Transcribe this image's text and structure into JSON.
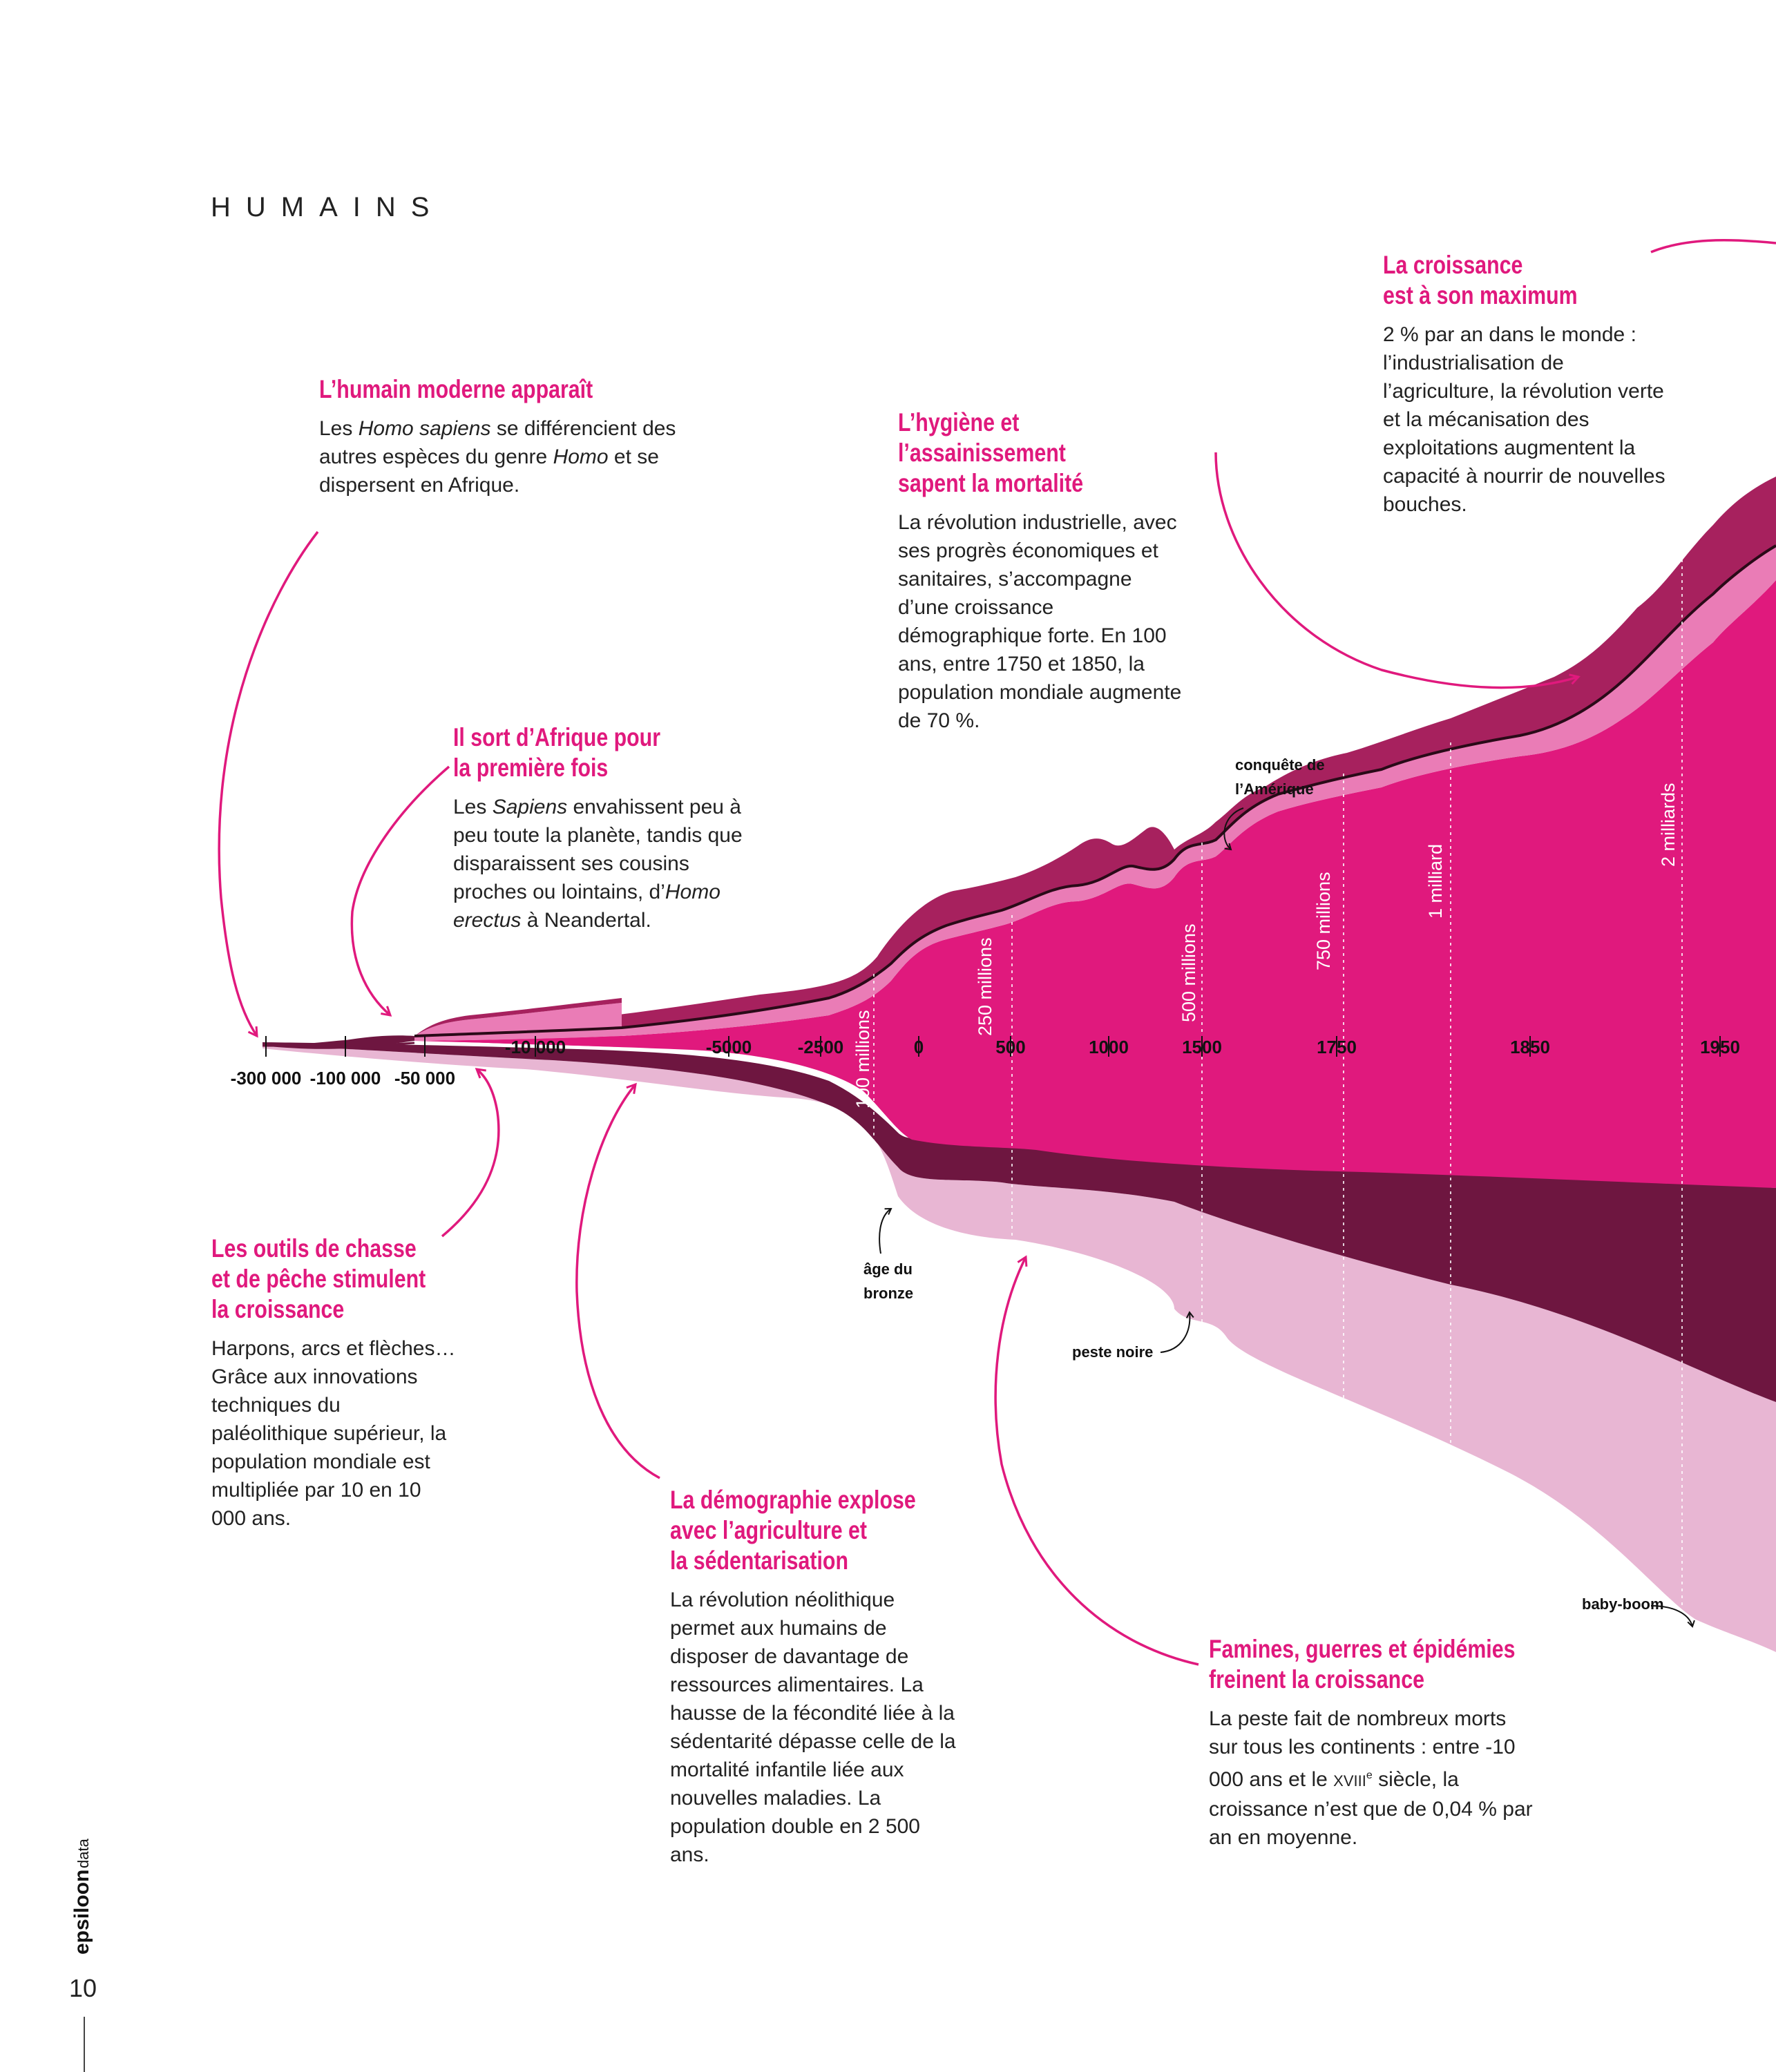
{
  "section_title": "HUMAINS",
  "annotations": {
    "humain_moderne": {
      "title": "L’humain moderne apparaît",
      "body": [
        "Les ",
        "Homo sapiens",
        " se différencient des autres espèces du genre ",
        "Homo",
        " et se dispersent en Afrique."
      ]
    },
    "sort_afrique": {
      "title": [
        "Il sort d’Afrique pour",
        "la première fois"
      ],
      "body": [
        "Les ",
        "Sapiens",
        " envahissent peu à peu toute la planète, tandis que disparaissent ses cousins proches ou lointains, d’",
        "Homo erectus",
        " à Neandertal."
      ]
    },
    "outils": {
      "title": [
        "Les outils de chasse",
        "et de pêche stimulent",
        "la croissance"
      ],
      "body": "Harpons, arcs et flèches… Grâce aux innovations techniques du paléolithique supérieur, la population mondiale est multipliée par 10 en 10 000 ans."
    },
    "demographie": {
      "title": [
        "La démographie explose",
        "avec l’agriculture et",
        "la sédentarisation"
      ],
      "body": "La révolution néolithique permet aux humains de disposer de davantage de ressources alimentaires. La hausse de la fécondité liée à la sédentarité dépasse celle de la mortalité infantile liée aux nouvelles maladies. La population double en 2 500 ans."
    },
    "hygiene": {
      "title": [
        "L’hygiène et l’assainissement",
        "sapent la mortalité"
      ],
      "body": "La révolution industrielle, avec ses progrès économiques et sanitaires, s’accompagne d’une croissance démographique forte. En 100 ans, entre 1750 et 1850, la population mondiale augmente de 70 %."
    },
    "croissance_max": {
      "title": [
        "La croissance",
        "est à son maximum"
      ],
      "body": "2 % par an dans le monde : l’industrialisation de l’agriculture, la révolution verte et la mécanisation des exploitations augmentent la capacité à nourrir de nouvelles bouches."
    },
    "famines": {
      "title": [
        "Famines, guerres et épidémies",
        "freinent la croissance"
      ],
      "body": [
        "La peste fait de nombreux morts sur tous les continents : entre -10 000 ans et le ",
        "XVIII",
        "e",
        " siècle, la croissance n’est que de 0,04 % par an en moyenne."
      ]
    }
  },
  "chart_data": {
    "type": "area",
    "x_ticks": [
      "-300 000",
      "-100 000",
      "-50 000",
      "-10 000",
      "-5000",
      "-2500",
      "0",
      "500",
      "1000",
      "1500",
      "1750",
      "1850",
      "1950"
    ],
    "population_labels": [
      "100 millions",
      "250 millions",
      "500 millions",
      "750 millions",
      "1 milliard",
      "2 milliards"
    ],
    "events": {
      "conquete": [
        "conquête de",
        "l’Amérique"
      ],
      "bronze": [
        "âge du",
        "bronze"
      ],
      "peste": "peste noire",
      "babyboom": "baby-boom"
    },
    "colors": {
      "main": "#e0197d",
      "light_pink": "#ea7cb6",
      "dark_purple": "#6e1640",
      "lower_pink": "#e8b6d3",
      "mid_purple": "#a7215e"
    }
  },
  "footer": {
    "brand": "epsiloon",
    "brand_suffix": "data",
    "page_number": "10"
  }
}
